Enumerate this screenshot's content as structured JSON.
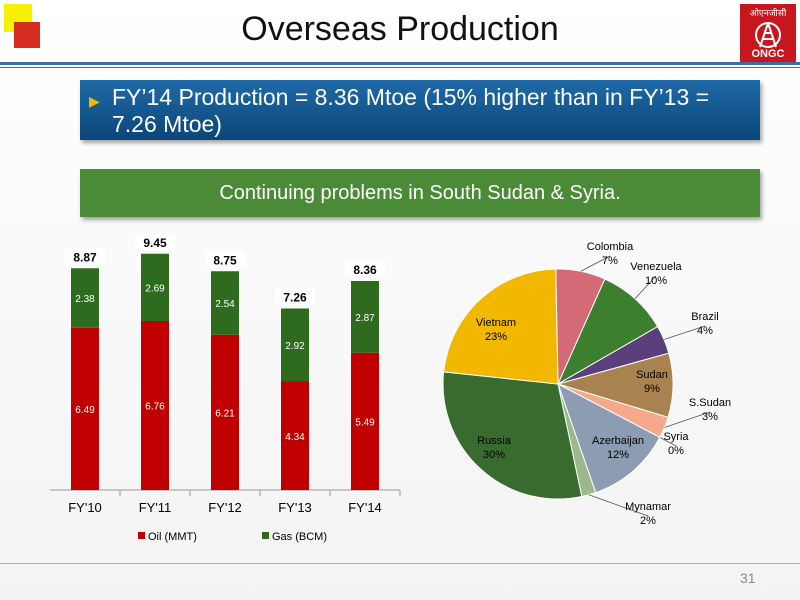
{
  "slide": {
    "title": "Overseas Production",
    "logo_hindi": "ओएनजीसी",
    "logo_text": "ONGC",
    "bullet": "FY’14 Production = 8.36 Mtoe (15% higher than in FY’13 = 7.26 Mtoe)",
    "highlight": "Continuing problems in South Sudan & Syria.",
    "page_number": "31"
  },
  "colors": {
    "oil": "#c00000",
    "gas": "#2e6b1f",
    "accent_blue": "#1f6aa8",
    "highlight_green": "#4b8b37"
  },
  "chart_data": [
    {
      "type": "bar",
      "stacked": true,
      "categories": [
        "FY'10",
        "FY'11",
        "FY'12",
        "FY'13",
        "FY'14"
      ],
      "series": [
        {
          "name": "Oil (MMT)",
          "values": [
            6.49,
            6.76,
            6.21,
            4.34,
            5.49
          ]
        },
        {
          "name": "Gas (BCM)",
          "values": [
            2.38,
            2.69,
            2.54,
            2.92,
            2.87
          ]
        }
      ],
      "totals": [
        8.87,
        9.45,
        8.75,
        7.26,
        8.36
      ],
      "ylim": [
        0,
        10
      ],
      "legend": "bottom",
      "grid": false
    },
    {
      "type": "pie",
      "slices": [
        {
          "label": "Colombia",
          "value": 7,
          "display": "7%",
          "color": "#d46a76"
        },
        {
          "label": "Venezuela",
          "value": 10,
          "display": "10%",
          "color": "#3c7f2e"
        },
        {
          "label": "Brazil",
          "value": 4,
          "display": "4%",
          "color": "#5a3f7a"
        },
        {
          "label": "Sudan",
          "value": 9,
          "display": "9%",
          "color": "#a8834f"
        },
        {
          "label": "S.Sudan",
          "value": 3,
          "display": "3%",
          "color": "#f4a98a"
        },
        {
          "label": "Syria",
          "value": 0,
          "display": "0%",
          "color": "#bfbfbf"
        },
        {
          "label": "Azerbaijan",
          "value": 12,
          "display": "12%",
          "color": "#8c9db3"
        },
        {
          "label": "Mynamar",
          "value": 2,
          "display": "2%",
          "color": "#9db88c"
        },
        {
          "label": "Russia",
          "value": 30,
          "display": "30%",
          "color": "#3a6b2e"
        },
        {
          "label": "Vietnam",
          "value": 23,
          "display": "23%",
          "color": "#f2b800"
        }
      ]
    }
  ]
}
